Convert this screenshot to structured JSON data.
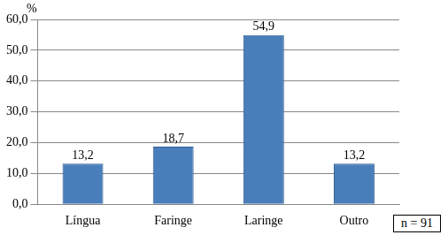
{
  "chart_data": {
    "type": "bar",
    "y_label": "%",
    "annotations": [
      "n = 91"
    ],
    "categories": [
      "Língua",
      "Faringe",
      "Laringe",
      "Outro"
    ],
    "values": [
      13.2,
      18.7,
      54.9,
      13.2
    ],
    "value_labels": [
      "13,2",
      "18,7",
      "54,9",
      "13,2"
    ],
    "data_labels": true,
    "color": "#4a7ebb",
    "ylim": [
      0,
      60
    ],
    "yticks": [
      {
        "value": 0,
        "label": "0,0"
      },
      {
        "value": 10,
        "label": "10,0"
      },
      {
        "value": 20,
        "label": "20,0"
      },
      {
        "value": 30,
        "label": "30,0"
      },
      {
        "value": 40,
        "label": "40,0"
      },
      {
        "value": 50,
        "label": "50,0"
      },
      {
        "value": 60,
        "label": "60,0"
      }
    ],
    "grid": true
  }
}
